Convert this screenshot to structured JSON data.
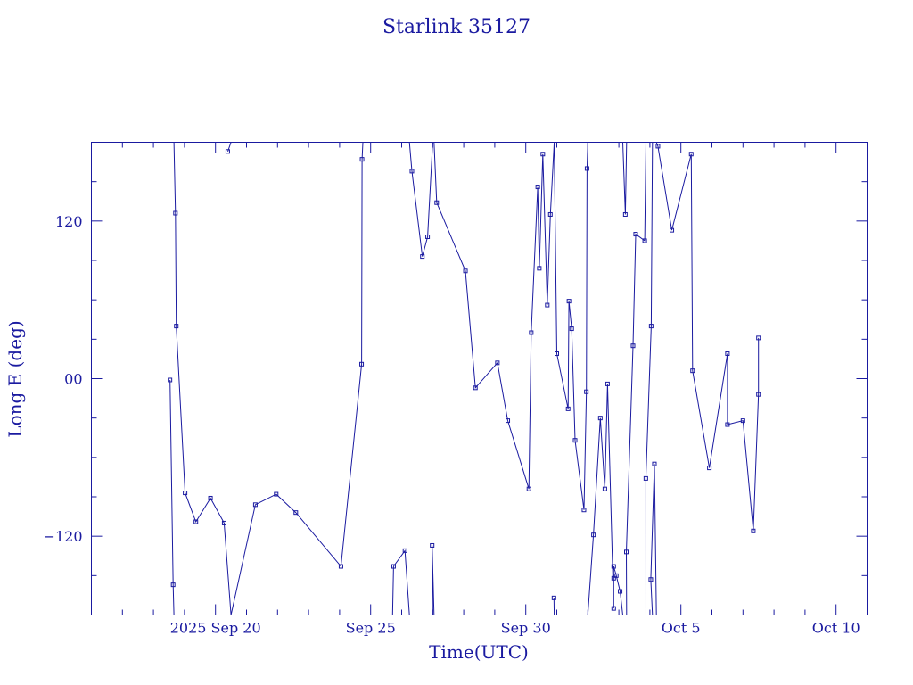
{
  "chart_data": {
    "type": "line",
    "title": "Starlink 35127",
    "xlabel": "Time(UTC)",
    "ylabel": "Long E (deg)",
    "x_is_date": true,
    "xlim": [
      "2025-09-16",
      "2025-10-11"
    ],
    "ylim": [
      -180,
      180
    ],
    "x_ticks": [
      {
        "x": "2025-09-20",
        "label": "2025 Sep 20"
      },
      {
        "x": "2025-09-25",
        "label": "Sep 25"
      },
      {
        "x": "2025-09-30",
        "label": "Sep 30"
      },
      {
        "x": "2025-10-05",
        "label": "Oct  5"
      },
      {
        "x": "2025-10-10",
        "label": "Oct 10"
      }
    ],
    "y_ticks": [
      {
        "y": 120,
        "label": "120"
      },
      {
        "y": 0,
        "label": "00"
      },
      {
        "y": -120,
        "label": "−120"
      }
    ],
    "grid": false,
    "series": [
      {
        "points": [
          {
            "x": "2025-09-18T12:48",
            "y": -1
          },
          {
            "x": "2025-09-18T15:14",
            "y": -157
          },
          {
            "x": "2025-09-18T15:52",
            "y": -180
          },
          {
            "x": "2025-09-18T15:52",
            "y": 180
          },
          {
            "x": "2025-09-18T17:02",
            "y": 126
          },
          {
            "x": "2025-09-18T17:41",
            "y": 40
          },
          {
            "x": "2025-09-19T00:29",
            "y": -87
          },
          {
            "x": "2025-09-19T08:50",
            "y": -109
          },
          {
            "x": "2025-09-19T20:07",
            "y": -91
          },
          {
            "x": "2025-09-20T06:43",
            "y": -110
          },
          {
            "x": "2025-09-20T12:00",
            "y": -180
          },
          {
            "x": "2025-09-20T12:00",
            "y": 180
          },
          {
            "x": "2025-09-20T09:29",
            "y": 173
          },
          {
            "x": "2025-09-20T12:00",
            "y": 180
          },
          {
            "x": "2025-09-20T12:00",
            "y": -180
          },
          {
            "x": "2025-09-21T06:50",
            "y": -96
          },
          {
            "x": "2025-09-21T22:57",
            "y": -88
          },
          {
            "x": "2025-09-22T14:08",
            "y": -102
          },
          {
            "x": "2025-09-24T01:04",
            "y": -143
          },
          {
            "x": "2025-09-24T17:00",
            "y": 11
          },
          {
            "x": "2025-09-24T17:21",
            "y": 167
          },
          {
            "x": "2025-09-24T18:00",
            "y": 180
          },
          {
            "x": "2025-09-24T18:00",
            "y": -180
          },
          {
            "x": "2025-09-25T17:00",
            "y": -180
          },
          {
            "x": "2025-09-25T17:45",
            "y": -143
          },
          {
            "x": "2025-09-26T02:34",
            "y": -131
          },
          {
            "x": "2025-09-26T06:00",
            "y": -180
          },
          {
            "x": "2025-09-26T06:00",
            "y": 180
          },
          {
            "x": "2025-09-26T07:55",
            "y": 158
          },
          {
            "x": "2025-09-26T16:01",
            "y": 93
          },
          {
            "x": "2025-09-26T20:03",
            "y": 108
          },
          {
            "x": "2025-09-27T00:00",
            "y": 180
          },
          {
            "x": "2025-09-27T00:00",
            "y": -180
          },
          {
            "x": "2025-09-26T23:35",
            "y": -127
          },
          {
            "x": "2025-09-27T01:00",
            "y": -180
          },
          {
            "x": "2025-09-27T01:00",
            "y": 180
          },
          {
            "x": "2025-09-27T03:05",
            "y": 134
          },
          {
            "x": "2025-09-28T01:20",
            "y": 82
          },
          {
            "x": "2025-09-28T09:03",
            "y": -7
          },
          {
            "x": "2025-09-29T02:03",
            "y": 12
          },
          {
            "x": "2025-09-29T10:05",
            "y": -32
          },
          {
            "x": "2025-09-30T02:26",
            "y": -84
          },
          {
            "x": "2025-09-30T04:14",
            "y": 35
          },
          {
            "x": "2025-09-30T09:16",
            "y": 146
          },
          {
            "x": "2025-09-30T10:28",
            "y": 84
          },
          {
            "x": "2025-09-30T13:11",
            "y": 171
          },
          {
            "x": "2025-09-30T16:38",
            "y": 56
          },
          {
            "x": "2025-09-30T19:01",
            "y": 125
          },
          {
            "x": "2025-09-30T22:00",
            "y": 180
          },
          {
            "x": "2025-09-30T22:00",
            "y": -180
          },
          {
            "x": "2025-09-30T21:48",
            "y": -167
          },
          {
            "x": "2025-09-30T22:00",
            "y": -180
          },
          {
            "x": "2025-09-30T22:00",
            "y": 180
          },
          {
            "x": "2025-10-01T00:00",
            "y": 19
          },
          {
            "x": "2025-10-01T08:46",
            "y": -23
          },
          {
            "x": "2025-10-01T09:24",
            "y": 59
          },
          {
            "x": "2025-10-01T11:31",
            "y": 38
          },
          {
            "x": "2025-10-01T14:09",
            "y": -47
          },
          {
            "x": "2025-10-01T21:00",
            "y": -100
          },
          {
            "x": "2025-10-01T22:52",
            "y": -10
          },
          {
            "x": "2025-10-01T23:24",
            "y": 160
          },
          {
            "x": "2025-10-02T00:00",
            "y": 180
          },
          {
            "x": "2025-10-02T00:00",
            "y": -180
          },
          {
            "x": "2025-10-02T04:22",
            "y": -119
          },
          {
            "x": "2025-10-02T09:40",
            "y": -30
          },
          {
            "x": "2025-10-02T13:11",
            "y": -84
          },
          {
            "x": "2025-10-02T15:14",
            "y": -4
          },
          {
            "x": "2025-10-02T20:00",
            "y": -175
          },
          {
            "x": "2025-10-02T20:00",
            "y": -152
          },
          {
            "x": "2025-10-02T20:00",
            "y": -143
          },
          {
            "x": "2025-10-02T22:00",
            "y": -150
          },
          {
            "x": "2025-10-03T01:00",
            "y": -162
          },
          {
            "x": "2025-10-03T03:00",
            "y": -180
          },
          {
            "x": "2025-10-03T03:00",
            "y": 180
          },
          {
            "x": "2025-10-03T05:00",
            "y": 125
          },
          {
            "x": "2025-10-03T06:00",
            "y": 180
          },
          {
            "x": "2025-10-03T06:00",
            "y": -180
          },
          {
            "x": "2025-10-03T05:48",
            "y": -132
          },
          {
            "x": "2025-10-03T10:58",
            "y": 25
          },
          {
            "x": "2025-10-03T13:00",
            "y": 110
          },
          {
            "x": "2025-10-03T20:00",
            "y": 105
          },
          {
            "x": "2025-10-03T21:00",
            "y": 180
          },
          {
            "x": "2025-10-03T21:00",
            "y": -180
          },
          {
            "x": "2025-10-03T20:52",
            "y": -76
          },
          {
            "x": "2025-10-04T01:00",
            "y": 40
          },
          {
            "x": "2025-10-04T02:00",
            "y": 180
          },
          {
            "x": "2025-10-04T02:00",
            "y": -180
          },
          {
            "x": "2025-10-04T00:43",
            "y": -153
          },
          {
            "x": "2025-10-04T03:30",
            "y": -65
          },
          {
            "x": "2025-10-04T05:00",
            "y": -180
          },
          {
            "x": "2025-10-04T05:00",
            "y": 180
          },
          {
            "x": "2025-10-04T06:14",
            "y": 177
          },
          {
            "x": "2025-10-04T17:00",
            "y": 113
          },
          {
            "x": "2025-10-05T07:58",
            "y": 171
          },
          {
            "x": "2025-10-05T09:00",
            "y": 6
          },
          {
            "x": "2025-10-05T22:00",
            "y": -68
          },
          {
            "x": "2025-10-06T12:00",
            "y": 19
          },
          {
            "x": "2025-10-06T12:00",
            "y": -35
          },
          {
            "x": "2025-10-07T00:00",
            "y": -32
          },
          {
            "x": "2025-10-07T08:00",
            "y": -116
          },
          {
            "x": "2025-10-07T12:00",
            "y": -12
          },
          {
            "x": "2025-10-07T12:00",
            "y": 31
          }
        ]
      }
    ]
  }
}
